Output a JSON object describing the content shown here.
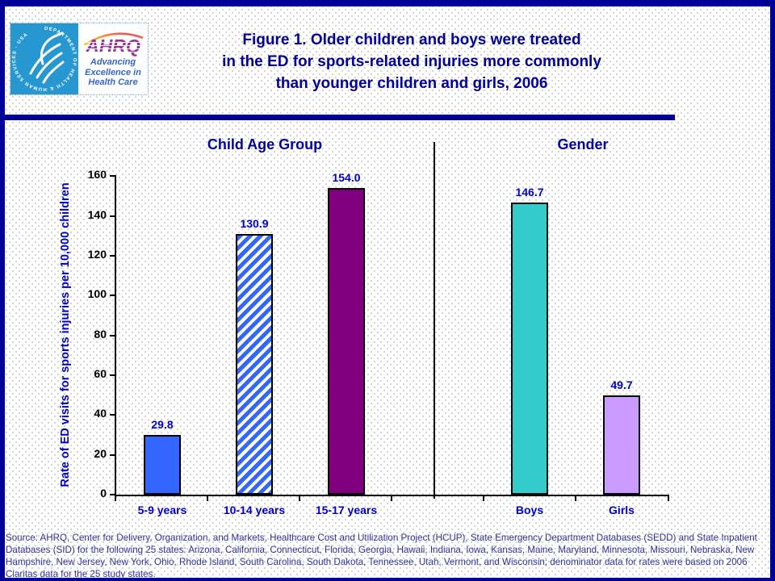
{
  "header": {
    "logo": {
      "hhs_circular_text": "DEPARTMENT OF HEALTH & HUMAN SERVICES · USA",
      "ahrq_acronym": "AHRQ",
      "tagline_line1": "Advancing",
      "tagline_line2": "Excellence in",
      "tagline_line3": "Health Care"
    },
    "title_line1": "Figure 1. Older children and boys were treated",
    "title_line2": "in the ED for sports-related injuries more commonly",
    "title_line3": "than younger children and girls, 2006"
  },
  "chart_data": {
    "type": "bar",
    "ylabel": "Rate of ED visits for sports injuries per 10,000 children",
    "ylim": [
      0,
      160
    ],
    "ytick_labels": [
      "0",
      "20",
      "40",
      "60",
      "80",
      "100",
      "120",
      "140",
      "160"
    ],
    "grid": false,
    "legend": "none",
    "groups": [
      {
        "label": "Child Age Group",
        "bars": [
          {
            "category": "5-9 years",
            "value": 29.8,
            "value_label": "29.8",
            "fill": "#3366FF",
            "pattern": "solid"
          },
          {
            "category": "10-14 years",
            "value": 130.9,
            "value_label": "130.9",
            "fill": "#3366FF",
            "pattern": "diagonal-hatch"
          },
          {
            "category": "15-17 years",
            "value": 154.0,
            "value_label": "154.0",
            "fill": "#800080",
            "pattern": "solid"
          }
        ]
      },
      {
        "label": "Gender",
        "bars": [
          {
            "category": "Boys",
            "value": 146.7,
            "value_label": "146.7",
            "fill": "#33CCCC",
            "pattern": "solid"
          },
          {
            "category": "Girls",
            "value": 49.7,
            "value_label": "49.7",
            "fill": "#CC99FF",
            "pattern": "solid"
          }
        ]
      }
    ]
  },
  "colors": {
    "frame_navy": "#000099",
    "label_blue": "#0000CC",
    "axis_black": "#000000",
    "bar_blue": "#3366FF",
    "bar_purple": "#800080",
    "bar_teal": "#33CCCC",
    "bar_lavender": "#CC99FF",
    "hhs_logo_blue": "#2697D0",
    "ahrq_purple": "#993399"
  },
  "source_note": "Source: AHRQ, Center for Delivery, Organization, and Markets, Healthcare Cost and Utilization Project (HCUP), State Emergency Department Databases (SEDD) and State Inpatient Databases (SID) for the following 25 states: Arizona, California, Connecticut, Florida, Georgia, Hawaii, Indiana, Iowa, Kansas, Maine, Maryland, Minnesota, Missouri, Nebraska, New Hampshire, New Jersey, New York, Ohio, Rhode Island, South Carolina, South Dakota, Tennessee, Utah, Vermont, and Wisconsin; denominator data for rates were based on 2006 Claritas data for the 25 study states."
}
